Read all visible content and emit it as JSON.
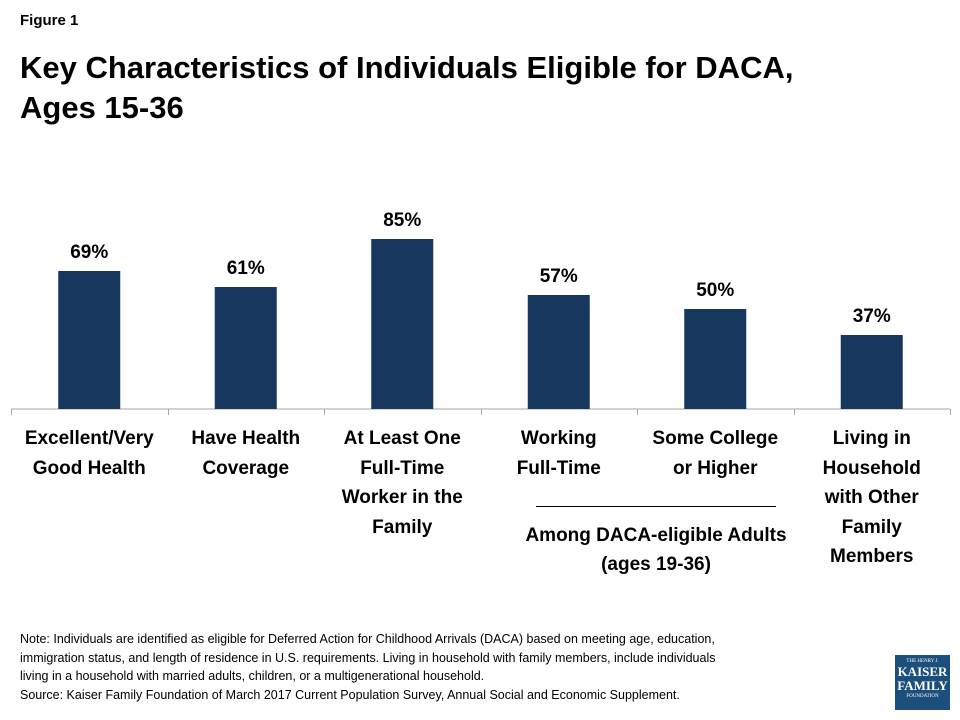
{
  "figure_label": "Figure 1",
  "title_lines": [
    "Key Characteristics of Individuals Eligible for DACA,",
    "Ages 15-36"
  ],
  "colors": {
    "bar": "#17375e",
    "axis": "#a6a6a6",
    "logo": "#1c4f7c"
  },
  "chart_data": {
    "type": "bar",
    "title": "Key Characteristics of Individuals Eligible for DACA, Ages 15-36",
    "categories": [
      "Excellent/Very Good Health",
      "Have Health Coverage",
      "At Least One Full-Time Worker in the Family",
      "Working Full-Time",
      "Some College or Higher",
      "Living in Household with Other Family Members"
    ],
    "category_lines": [
      [
        "Excellent/Very",
        "Good Health"
      ],
      [
        "Have Health",
        "Coverage"
      ],
      [
        "At Least One",
        "Full-Time",
        "Worker in the",
        "Family"
      ],
      [
        "Working",
        "Full-Time"
      ],
      [
        "Some College",
        "or Higher"
      ],
      [
        "Living in",
        "Household",
        "with Other",
        "Family",
        "Members"
      ]
    ],
    "values": [
      69,
      61,
      85,
      57,
      50,
      37
    ],
    "data_labels": [
      "69%",
      "61%",
      "85%",
      "57%",
      "50%",
      "37%"
    ],
    "ylim": [
      0,
      100
    ],
    "xlabel": "",
    "ylabel": "",
    "grid": false,
    "group_annotation": {
      "applies_to": [
        "Working Full-Time",
        "Some College or Higher"
      ],
      "lines": [
        "Among DACA-eligible Adults",
        "(ages 19-36)"
      ]
    }
  },
  "note_lines": [
    "Note: Individuals are identified as eligible for Deferred Action for Childhood Arrivals (DACA) based on meeting age, education,",
    "immigration status, and length of residence in U.S. requirements. Living in household with family members, include individuals",
    "living in a household with married adults, children, or a multigenerational household.",
    "Source: Kaiser Family Foundation of March 2017 Current Population Survey, Annual Social and Economic Supplement."
  ],
  "logo": {
    "top": "THE HENRY J.",
    "line1": "KAISER",
    "line2": "FAMILY",
    "bottom": "FOUNDATION"
  }
}
